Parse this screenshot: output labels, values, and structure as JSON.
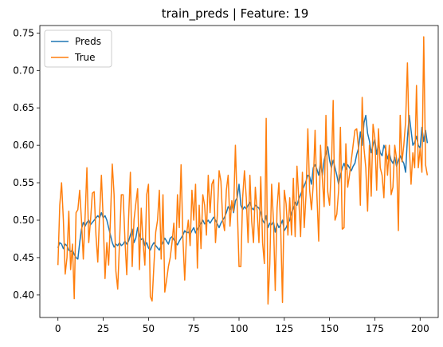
{
  "chart_data": {
    "type": "line",
    "title": "train_preds | Feature: 19",
    "xlabel": "",
    "ylabel": "",
    "xlim": [
      -10,
      210
    ],
    "ylim": [
      0.37,
      0.76
    ],
    "x_ticks": [
      0,
      25,
      50,
      75,
      100,
      125,
      150,
      175,
      200
    ],
    "y_ticks": [
      0.4,
      0.45,
      0.5,
      0.55,
      0.6,
      0.65,
      0.7,
      0.75
    ],
    "x_tick_labels": [
      "0",
      "25",
      "50",
      "75",
      "100",
      "125",
      "150",
      "175",
      "200"
    ],
    "y_tick_labels": [
      "0.40",
      "0.45",
      "0.50",
      "0.55",
      "0.60",
      "0.65",
      "0.70",
      "0.75"
    ],
    "grid": false,
    "legend": "top-left",
    "series": [
      {
        "name": "Preds",
        "color": "#1f77b4",
        "values": [
          0.463,
          0.47,
          0.468,
          0.462,
          0.468,
          0.466,
          0.46,
          0.458,
          0.46,
          0.454,
          0.45,
          0.448,
          0.47,
          0.488,
          0.497,
          0.492,
          0.497,
          0.5,
          0.494,
          0.497,
          0.5,
          0.503,
          0.506,
          0.503,
          0.51,
          0.503,
          0.506,
          0.5,
          0.49,
          0.48,
          0.47,
          0.464,
          0.468,
          0.466,
          0.47,
          0.466,
          0.468,
          0.472,
          0.468,
          0.472,
          0.48,
          0.488,
          0.47,
          0.476,
          0.49,
          0.48,
          0.474,
          0.476,
          0.466,
          0.47,
          0.463,
          0.46,
          0.466,
          0.47,
          0.466,
          0.463,
          0.46,
          0.466,
          0.47,
          0.476,
          0.472,
          0.468,
          0.476,
          0.478,
          0.474,
          0.47,
          0.467,
          0.472,
          0.476,
          0.48,
          0.486,
          0.483,
          0.484,
          0.481,
          0.486,
          0.49,
          0.483,
          0.488,
          0.492,
          0.496,
          0.5,
          0.495,
          0.497,
          0.5,
          0.496,
          0.5,
          0.504,
          0.5,
          0.495,
          0.49,
          0.496,
          0.5,
          0.504,
          0.51,
          0.518,
          0.514,
          0.522,
          0.51,
          0.526,
          0.53,
          0.548,
          0.52,
          0.514,
          0.518,
          0.515,
          0.52,
          0.524,
          0.516,
          0.514,
          0.52,
          0.518,
          0.516,
          0.51,
          0.5,
          0.496,
          0.506,
          0.49,
          0.496,
          0.494,
          0.498,
          0.484,
          0.496,
          0.49,
          0.494,
          0.5,
          0.486,
          0.49,
          0.496,
          0.5,
          0.51,
          0.516,
          0.524,
          0.52,
          0.528,
          0.534,
          0.54,
          0.546,
          0.552,
          0.56,
          0.558,
          0.548,
          0.57,
          0.574,
          0.568,
          0.56,
          0.578,
          0.56,
          0.58,
          0.59,
          0.598,
          0.58,
          0.57,
          0.58,
          0.57,
          0.56,
          0.548,
          0.56,
          0.57,
          0.576,
          0.568,
          0.574,
          0.57,
          0.566,
          0.572,
          0.576,
          0.588,
          0.596,
          0.618,
          0.6,
          0.63,
          0.64,
          0.616,
          0.606,
          0.59,
          0.6,
          0.608,
          0.588,
          0.602,
          0.59,
          0.586,
          0.6,
          0.594,
          0.582,
          0.59,
          0.58,
          0.576,
          0.584,
          0.572,
          0.58,
          0.586,
          0.58,
          0.576,
          0.564,
          0.61,
          0.64,
          0.62,
          0.6,
          0.604,
          0.612,
          0.6,
          0.596,
          0.624,
          0.605,
          0.62,
          0.603
        ]
      },
      {
        "name": "True",
        "color": "#ff7f0e",
        "values": [
          0.44,
          0.52,
          0.55,
          0.5,
          0.428,
          0.45,
          0.512,
          0.434,
          0.468,
          0.395,
          0.51,
          0.514,
          0.54,
          0.5,
          0.448,
          0.505,
          0.57,
          0.47,
          0.5,
          0.536,
          0.538,
          0.48,
          0.444,
          0.508,
          0.56,
          0.5,
          0.422,
          0.47,
          0.44,
          0.502,
          0.575,
          0.534,
          0.432,
          0.408,
          0.47,
          0.534,
          0.534,
          0.474,
          0.427,
          0.502,
          0.564,
          0.438,
          0.5,
          0.522,
          0.542,
          0.434,
          0.516,
          0.47,
          0.44,
          0.534,
          0.548,
          0.398,
          0.392,
          0.44,
          0.484,
          0.5,
          0.54,
          0.448,
          0.534,
          0.404,
          0.42,
          0.438,
          0.45,
          0.47,
          0.496,
          0.448,
          0.534,
          0.49,
          0.574,
          0.476,
          0.42,
          0.48,
          0.5,
          0.466,
          0.54,
          0.5,
          0.548,
          0.436,
          0.52,
          0.462,
          0.534,
          0.52,
          0.48,
          0.56,
          0.51,
          0.548,
          0.554,
          0.47,
          0.506,
          0.566,
          0.552,
          0.5,
          0.486,
          0.54,
          0.56,
          0.492,
          0.526,
          0.512,
          0.6,
          0.52,
          0.438,
          0.438,
          0.53,
          0.566,
          0.53,
          0.47,
          0.56,
          0.498,
          0.47,
          0.544,
          0.512,
          0.47,
          0.558,
          0.47,
          0.442,
          0.636,
          0.388,
          0.442,
          0.548,
          0.5,
          0.406,
          0.516,
          0.55,
          0.49,
          0.39,
          0.54,
          0.522,
          0.48,
          0.53,
          0.48,
          0.556,
          0.478,
          0.572,
          0.528,
          0.478,
          0.564,
          0.49,
          0.534,
          0.622,
          0.54,
          0.514,
          0.548,
          0.62,
          0.534,
          0.472,
          0.6,
          0.556,
          0.518,
          0.64,
          0.538,
          0.52,
          0.57,
          0.66,
          0.5,
          0.508,
          0.54,
          0.624,
          0.488,
          0.49,
          0.602,
          0.544,
          0.56,
          0.58,
          0.6,
          0.62,
          0.622,
          0.596,
          0.52,
          0.664,
          0.596,
          0.57,
          0.512,
          0.6,
          0.532,
          0.628,
          0.61,
          0.54,
          0.622,
          0.57,
          0.56,
          0.53,
          0.6,
          0.56,
          0.6,
          0.534,
          0.544,
          0.6,
          0.582,
          0.486,
          0.64,
          0.578,
          0.6,
          0.632,
          0.71,
          0.6,
          0.548,
          0.59,
          0.57,
          0.68,
          0.57,
          0.596,
          0.564,
          0.745,
          0.574,
          0.56
        ]
      }
    ]
  }
}
